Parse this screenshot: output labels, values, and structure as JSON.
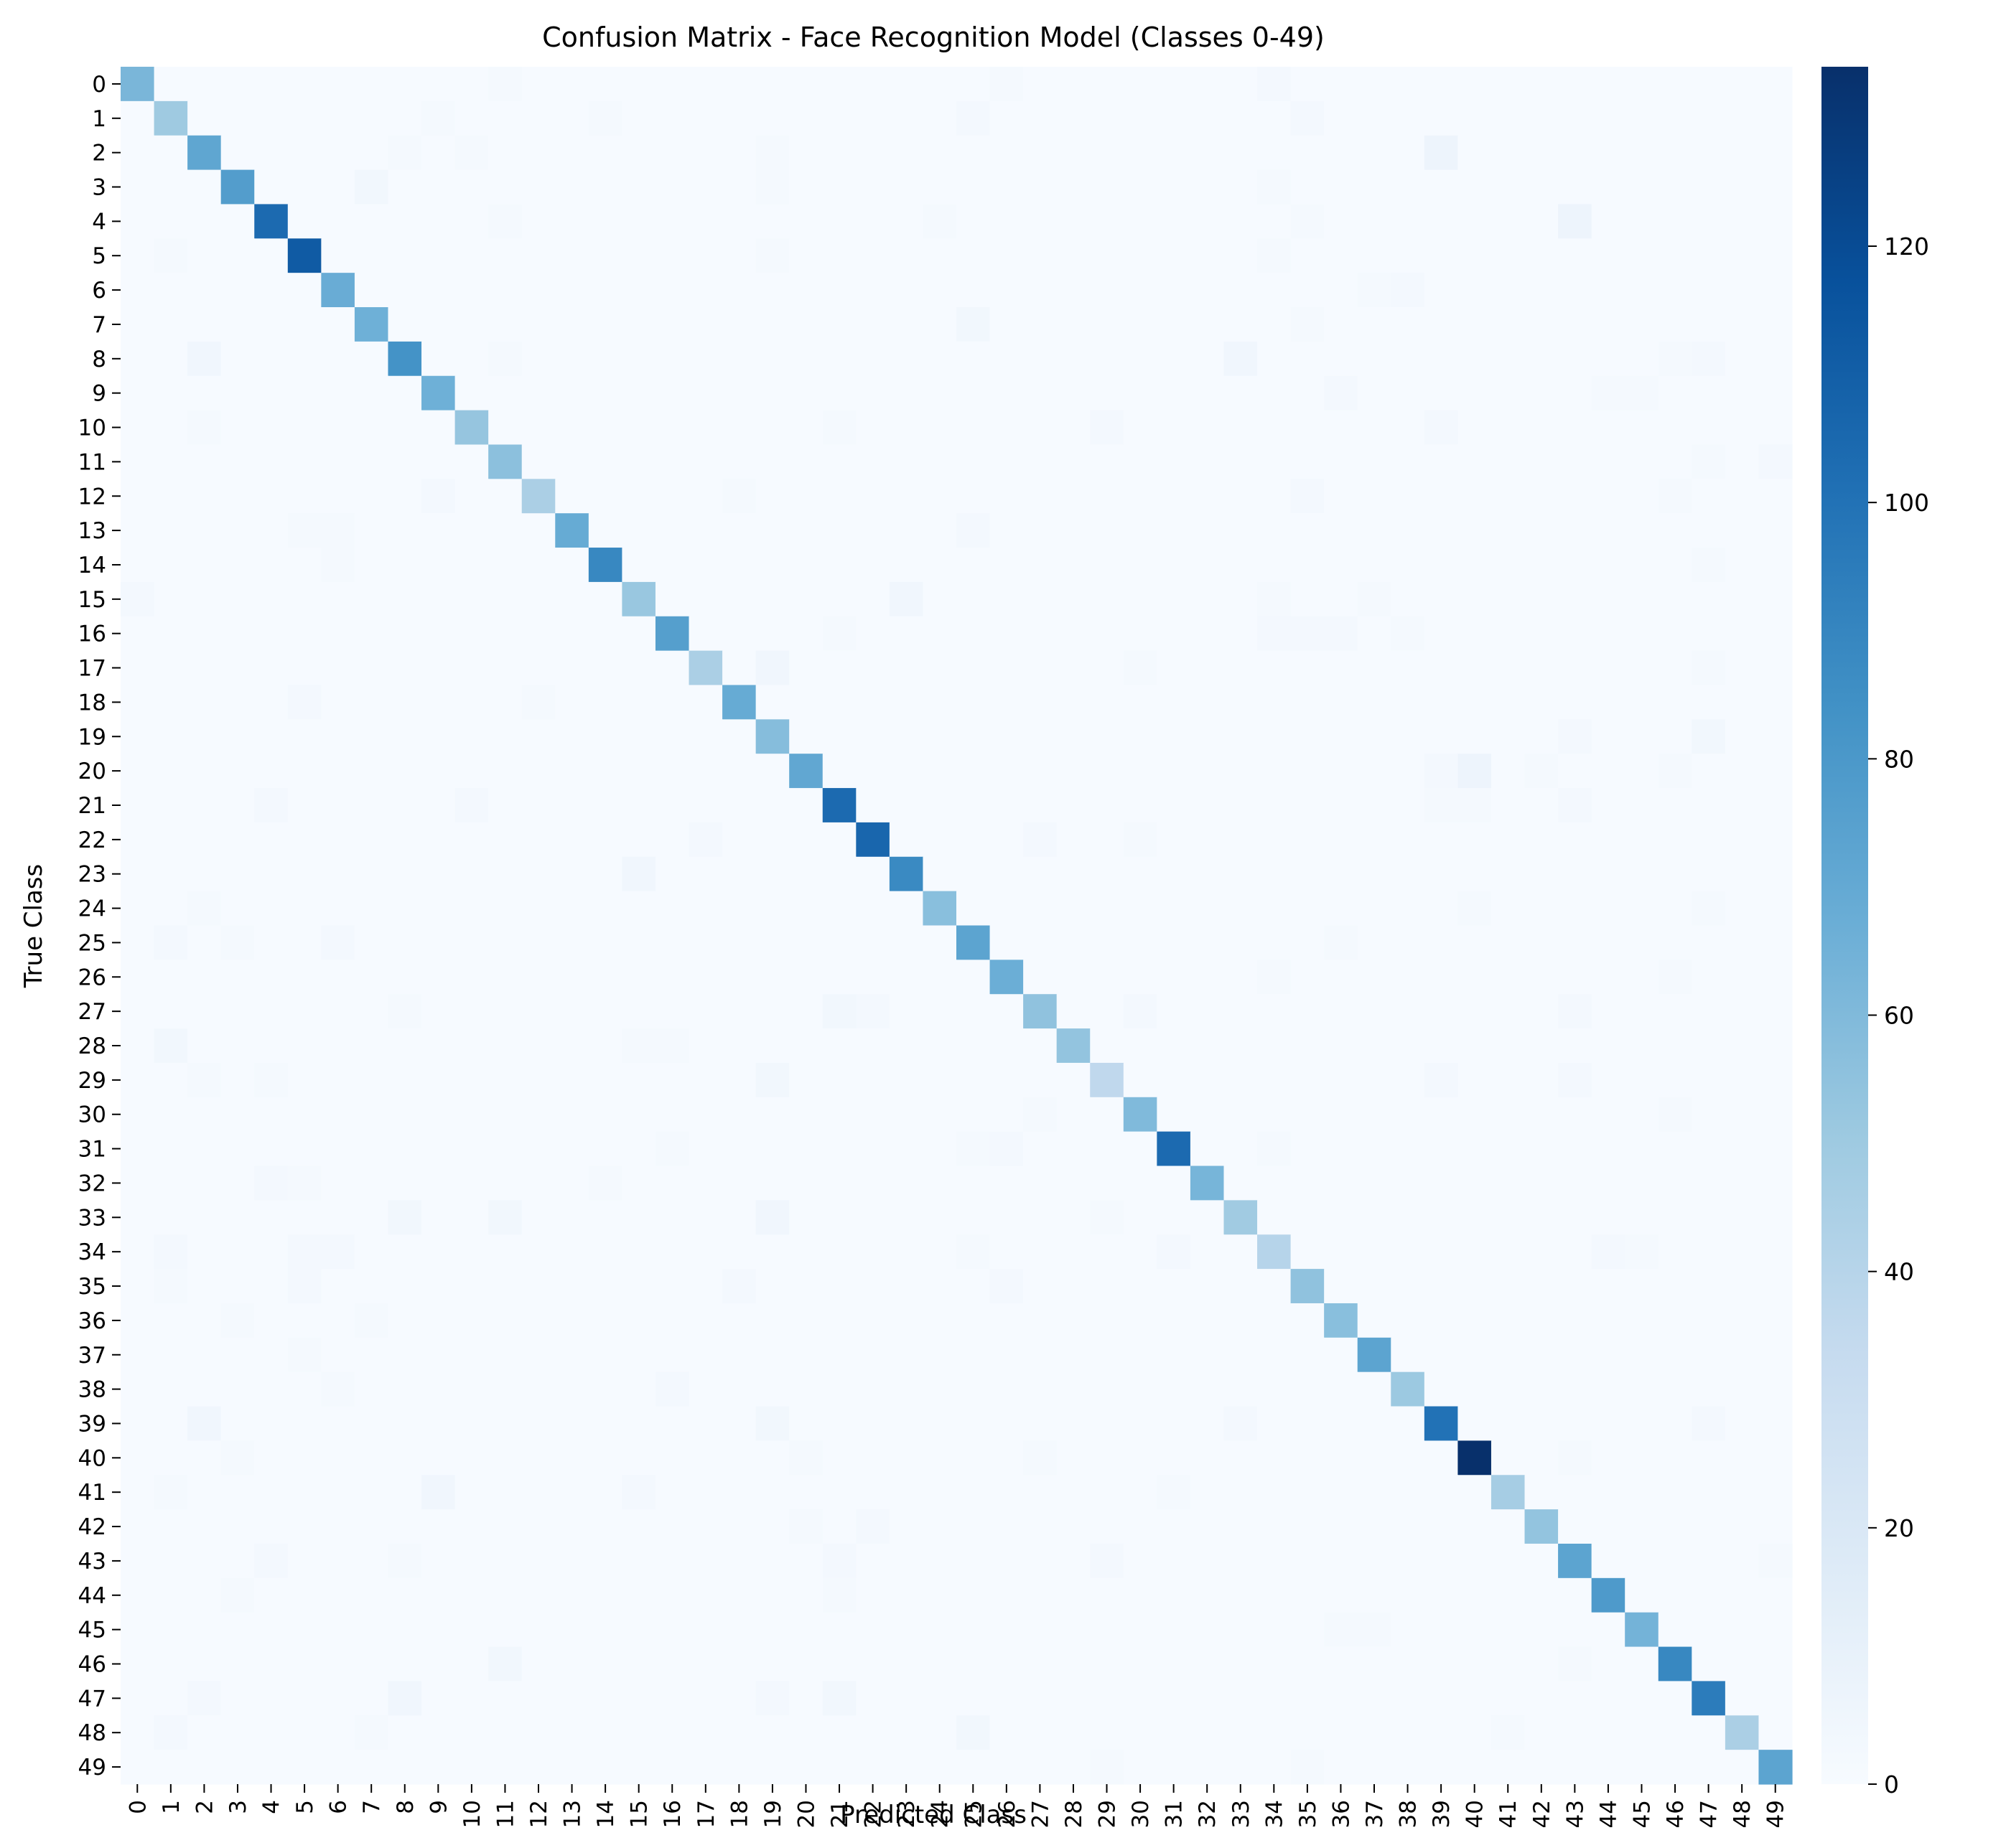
{
  "chart_data": {
    "type": "heatmap",
    "title": "Confusion Matrix - Face Recognition Model (Classes 0-49)",
    "xlabel": "Predicted Class",
    "ylabel": "True Class",
    "x_tick_labels": [
      "0",
      "1",
      "2",
      "3",
      "4",
      "5",
      "6",
      "7",
      "8",
      "9",
      "10",
      "11",
      "12",
      "13",
      "14",
      "15",
      "16",
      "17",
      "18",
      "19",
      "20",
      "21",
      "22",
      "23",
      "24",
      "25",
      "26",
      "27",
      "28",
      "29",
      "30",
      "31",
      "32",
      "33",
      "34",
      "35",
      "36",
      "37",
      "38",
      "39",
      "40",
      "41",
      "42",
      "43",
      "44",
      "45",
      "46",
      "47",
      "48",
      "49"
    ],
    "y_tick_labels": [
      "0",
      "1",
      "2",
      "3",
      "4",
      "5",
      "6",
      "7",
      "8",
      "9",
      "10",
      "11",
      "12",
      "13",
      "14",
      "15",
      "16",
      "17",
      "18",
      "19",
      "20",
      "21",
      "22",
      "23",
      "24",
      "25",
      "26",
      "27",
      "28",
      "29",
      "30",
      "31",
      "32",
      "33",
      "34",
      "35",
      "36",
      "37",
      "38",
      "39",
      "40",
      "41",
      "42",
      "43",
      "44",
      "45",
      "46",
      "47",
      "48",
      "49"
    ],
    "diagonal_values": [
      62,
      50,
      72,
      77,
      104,
      112,
      68,
      66,
      83,
      66,
      53,
      56,
      45,
      69,
      89,
      52,
      76,
      45,
      69,
      58,
      71,
      104,
      106,
      88,
      57,
      73,
      67,
      55,
      54,
      36,
      60,
      104,
      63,
      49,
      40,
      55,
      57,
      73,
      51,
      100,
      134,
      47,
      54,
      73,
      79,
      64,
      89,
      95,
      45,
      73
    ],
    "off_diagonal_default": 1,
    "off_diagonal_entries": [
      [
        0,
        34,
        3
      ],
      [
        0,
        26,
        2
      ],
      [
        0,
        11,
        2
      ],
      [
        1,
        9,
        2
      ],
      [
        1,
        14,
        2
      ],
      [
        1,
        25,
        3
      ],
      [
        1,
        35,
        3
      ],
      [
        2,
        10,
        2
      ],
      [
        2,
        19,
        2
      ],
      [
        2,
        39,
        7
      ],
      [
        2,
        8,
        2
      ],
      [
        3,
        7,
        4
      ],
      [
        3,
        19,
        2
      ],
      [
        3,
        34,
        2
      ],
      [
        4,
        11,
        2
      ],
      [
        4,
        24,
        2
      ],
      [
        4,
        43,
        7
      ],
      [
        4,
        35,
        2
      ],
      [
        5,
        1,
        2
      ],
      [
        5,
        34,
        2
      ],
      [
        5,
        19,
        2
      ],
      [
        6,
        38,
        3
      ],
      [
        6,
        37,
        2
      ],
      [
        7,
        25,
        4
      ],
      [
        7,
        35,
        2
      ],
      [
        8,
        2,
        5
      ],
      [
        8,
        11,
        2
      ],
      [
        8,
        33,
        5
      ],
      [
        8,
        46,
        2
      ],
      [
        8,
        47,
        3
      ],
      [
        9,
        36,
        3
      ],
      [
        9,
        44,
        2
      ],
      [
        9,
        45,
        2
      ],
      [
        10,
        2,
        2
      ],
      [
        10,
        21,
        2
      ],
      [
        10,
        29,
        3
      ],
      [
        10,
        39,
        3
      ],
      [
        11,
        47,
        2
      ],
      [
        11,
        49,
        3
      ],
      [
        12,
        9,
        3
      ],
      [
        12,
        18,
        2
      ],
      [
        12,
        35,
        3
      ],
      [
        12,
        46,
        2
      ],
      [
        13,
        25,
        3
      ],
      [
        13,
        5,
        2
      ],
      [
        13,
        6,
        2
      ],
      [
        14,
        6,
        2
      ],
      [
        14,
        47,
        2
      ],
      [
        15,
        0,
        3
      ],
      [
        15,
        23,
        5
      ],
      [
        15,
        34,
        2
      ],
      [
        15,
        37,
        2
      ],
      [
        16,
        34,
        3
      ],
      [
        16,
        35,
        3
      ],
      [
        16,
        36,
        3
      ],
      [
        16,
        21,
        2
      ],
      [
        16,
        38,
        2
      ],
      [
        17,
        19,
        5
      ],
      [
        17,
        30,
        2
      ],
      [
        17,
        47,
        2
      ],
      [
        18,
        5,
        3
      ],
      [
        18,
        12,
        2
      ],
      [
        19,
        43,
        3
      ],
      [
        19,
        47,
        4
      ],
      [
        20,
        39,
        3
      ],
      [
        20,
        40,
        7
      ],
      [
        20,
        46,
        2
      ],
      [
        20,
        42,
        2
      ],
      [
        21,
        4,
        3
      ],
      [
        21,
        10,
        3
      ],
      [
        21,
        43,
        3
      ],
      [
        21,
        40,
        2
      ],
      [
        21,
        39,
        2
      ],
      [
        22,
        17,
        3
      ],
      [
        22,
        27,
        3
      ],
      [
        22,
        30,
        2
      ],
      [
        23,
        15,
        5
      ],
      [
        24,
        40,
        2
      ],
      [
        24,
        47,
        2
      ],
      [
        24,
        2,
        2
      ],
      [
        25,
        1,
        3
      ],
      [
        25,
        3,
        2
      ],
      [
        25,
        6,
        3
      ],
      [
        25,
        36,
        2
      ],
      [
        26,
        46,
        2
      ],
      [
        26,
        34,
        2
      ],
      [
        27,
        21,
        4
      ],
      [
        27,
        22,
        3
      ],
      [
        27,
        30,
        3
      ],
      [
        27,
        43,
        3
      ],
      [
        27,
        8,
        2
      ],
      [
        28,
        1,
        4
      ],
      [
        28,
        15,
        2
      ],
      [
        28,
        16,
        2
      ],
      [
        29,
        19,
        4
      ],
      [
        29,
        4,
        2
      ],
      [
        29,
        39,
        3
      ],
      [
        29,
        43,
        3
      ],
      [
        29,
        2,
        2
      ],
      [
        30,
        27,
        2
      ],
      [
        30,
        46,
        2
      ],
      [
        31,
        16,
        2
      ],
      [
        31,
        26,
        3
      ],
      [
        31,
        34,
        2
      ],
      [
        31,
        25,
        2
      ],
      [
        32,
        4,
        3
      ],
      [
        32,
        5,
        2
      ],
      [
        32,
        14,
        2
      ],
      [
        33,
        8,
        4
      ],
      [
        33,
        11,
        4
      ],
      [
        33,
        19,
        5
      ],
      [
        33,
        29,
        2
      ],
      [
        34,
        1,
        3
      ],
      [
        34,
        5,
        3
      ],
      [
        34,
        6,
        3
      ],
      [
        34,
        31,
        3
      ],
      [
        34,
        44,
        3
      ],
      [
        34,
        45,
        2
      ],
      [
        34,
        25,
        2
      ],
      [
        35,
        18,
        3
      ],
      [
        35,
        26,
        3
      ],
      [
        35,
        5,
        3
      ],
      [
        35,
        1,
        2
      ],
      [
        36,
        3,
        2
      ],
      [
        36,
        7,
        2
      ],
      [
        37,
        5,
        2
      ],
      [
        38,
        16,
        3
      ],
      [
        38,
        6,
        2
      ],
      [
        39,
        2,
        5
      ],
      [
        39,
        19,
        4
      ],
      [
        39,
        33,
        3
      ],
      [
        39,
        47,
        3
      ],
      [
        40,
        3,
        2
      ],
      [
        40,
        20,
        2
      ],
      [
        40,
        27,
        2
      ],
      [
        40,
        43,
        2
      ],
      [
        41,
        9,
        5
      ],
      [
        41,
        15,
        3
      ],
      [
        41,
        31,
        2
      ],
      [
        41,
        1,
        2
      ],
      [
        42,
        22,
        3
      ],
      [
        42,
        20,
        2
      ],
      [
        43,
        4,
        3
      ],
      [
        43,
        8,
        2
      ],
      [
        43,
        21,
        3
      ],
      [
        43,
        29,
        3
      ],
      [
        43,
        49,
        2
      ],
      [
        44,
        3,
        2
      ],
      [
        44,
        21,
        2
      ],
      [
        45,
        36,
        2
      ],
      [
        45,
        37,
        2
      ],
      [
        46,
        11,
        4
      ],
      [
        46,
        43,
        2
      ],
      [
        47,
        2,
        3
      ],
      [
        47,
        8,
        5
      ],
      [
        47,
        19,
        3
      ],
      [
        47,
        21,
        4
      ],
      [
        48,
        1,
        3
      ],
      [
        48,
        7,
        2
      ],
      [
        48,
        25,
        4
      ],
      [
        48,
        41,
        2
      ],
      [
        49,
        29,
        2
      ],
      [
        49,
        35,
        2
      ]
    ],
    "colorbar": {
      "colormap": "Blues",
      "min": 0,
      "max": 134,
      "ticks": [
        "0",
        "20",
        "40",
        "60",
        "80",
        "100",
        "120"
      ]
    },
    "grid": false,
    "legend": "colorbar-right"
  }
}
